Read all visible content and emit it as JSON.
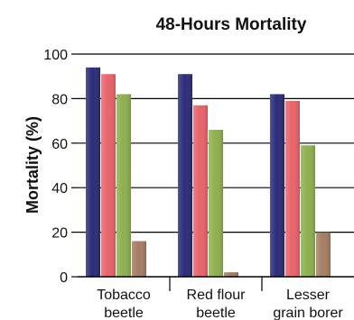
{
  "chart_data": {
    "type": "bar",
    "title": "48-Hours Mortality",
    "xlabel": "",
    "ylabel": "Mortality (%)",
    "ylim": [
      0,
      100
    ],
    "yticks": [
      0,
      20,
      40,
      60,
      80,
      100
    ],
    "grid": true,
    "categories": [
      [
        "Tobacco",
        "beetle"
      ],
      [
        "Red flour",
        "beetle"
      ],
      [
        "Lesser",
        "grain borer"
      ]
    ],
    "series": [
      {
        "color": "#2b2c78",
        "values": [
          94,
          91,
          82
        ]
      },
      {
        "color": "#e8636a",
        "values": [
          91,
          77,
          79
        ]
      },
      {
        "color": "#8db04e",
        "values": [
          82,
          66,
          59
        ]
      },
      {
        "color": "#a57d63",
        "values": [
          16,
          2,
          20
        ]
      }
    ]
  }
}
